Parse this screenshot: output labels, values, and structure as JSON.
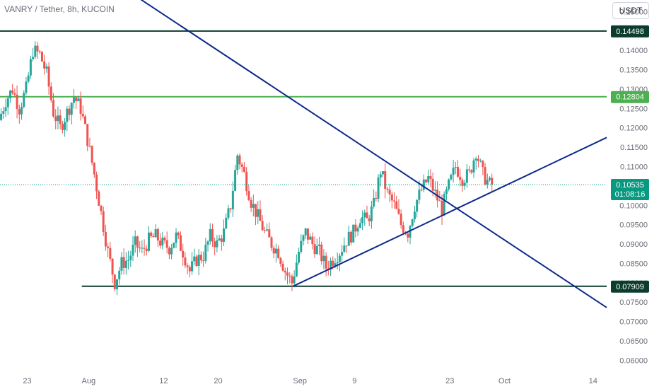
{
  "header": {
    "title": "VANRY / Tether, 8h, KUCOIN",
    "currency": "USDT"
  },
  "colors": {
    "up": "#26a69a",
    "down": "#ef5350",
    "trendline": "#0d2a8c",
    "support": "#0b3d2e",
    "green_level": "#4caf50",
    "current": "#089981"
  },
  "chart_data": {
    "type": "candlestick",
    "title": "VANRY / Tether, 8h, KUCOIN",
    "ylim": [
      0.0575,
      0.153
    ],
    "y_ticks": [
      0.06,
      0.065,
      0.07,
      0.075,
      0.08,
      0.085,
      0.09,
      0.095,
      0.1,
      0.105,
      0.11,
      0.115,
      0.12,
      0.125,
      0.13,
      0.135,
      0.14,
      0.145,
      0.15
    ],
    "y_tick_labels": [
      "0.06000",
      "0.06500",
      "0.07000",
      "0.07500",
      "0.08000",
      "0.08500",
      "0.09000",
      "0.09500",
      "0.10000",
      "0.10500",
      "0.11000",
      "0.11500",
      "0.12000",
      "0.12500",
      "0.13000",
      "0.13500",
      "0.14000",
      "0.14500",
      "0.15000"
    ],
    "x_start": "2024-07-19",
    "x_end": "2024-10-16",
    "x_ticks": [
      {
        "date": "2024-07-23",
        "label": "23"
      },
      {
        "date": "2024-08-01",
        "label": "Aug"
      },
      {
        "date": "2024-08-12",
        "label": "12"
      },
      {
        "date": "2024-08-20",
        "label": "20"
      },
      {
        "date": "2024-09-01",
        "label": "Sep"
      },
      {
        "date": "2024-09-09",
        "label": "9"
      },
      {
        "date": "2024-09-23",
        "label": "23"
      },
      {
        "date": "2024-10-01",
        "label": "Oct"
      },
      {
        "date": "2024-10-14",
        "label": "14"
      }
    ],
    "price_path": [
      [
        "2024-07-19",
        0.122
      ],
      [
        "2024-07-20",
        0.127
      ],
      [
        "2024-07-21",
        0.13
      ],
      [
        "2024-07-22",
        0.125
      ],
      [
        "2024-07-23",
        0.13
      ],
      [
        "2024-07-24",
        0.14
      ],
      [
        "2024-07-25",
        0.139
      ],
      [
        "2024-07-26",
        0.134
      ],
      [
        "2024-07-27",
        0.124
      ],
      [
        "2024-07-28",
        0.12
      ],
      [
        "2024-07-29",
        0.124
      ],
      [
        "2024-07-30",
        0.128
      ],
      [
        "2024-07-31",
        0.125
      ],
      [
        "2024-08-01",
        0.117
      ],
      [
        "2024-08-02",
        0.108
      ],
      [
        "2024-08-03",
        0.098
      ],
      [
        "2024-08-04",
        0.088
      ],
      [
        "2024-08-05",
        0.08
      ],
      [
        "2024-08-06",
        0.085
      ],
      [
        "2024-08-07",
        0.086
      ],
      [
        "2024-08-08",
        0.09
      ],
      [
        "2024-08-09",
        0.088
      ],
      [
        "2024-08-10",
        0.091
      ],
      [
        "2024-08-11",
        0.092
      ],
      [
        "2024-08-12",
        0.09
      ],
      [
        "2024-08-13",
        0.089
      ],
      [
        "2024-08-14",
        0.092
      ],
      [
        "2024-08-15",
        0.088
      ],
      [
        "2024-08-16",
        0.083
      ],
      [
        "2024-08-17",
        0.086
      ],
      [
        "2024-08-18",
        0.087
      ],
      [
        "2024-08-19",
        0.092
      ],
      [
        "2024-08-20",
        0.09
      ],
      [
        "2024-08-21",
        0.093
      ],
      [
        "2024-08-22",
        0.1
      ],
      [
        "2024-08-23",
        0.113
      ],
      [
        "2024-08-24",
        0.108
      ],
      [
        "2024-08-25",
        0.101
      ],
      [
        "2024-08-26",
        0.097
      ],
      [
        "2024-08-27",
        0.093
      ],
      [
        "2024-08-28",
        0.09
      ],
      [
        "2024-08-29",
        0.088
      ],
      [
        "2024-08-30",
        0.083
      ],
      [
        "2024-08-31",
        0.08
      ],
      [
        "2024-09-01",
        0.088
      ],
      [
        "2024-09-02",
        0.093
      ],
      [
        "2024-09-03",
        0.09
      ],
      [
        "2024-09-04",
        0.088
      ],
      [
        "2024-09-05",
        0.084
      ],
      [
        "2024-09-06",
        0.086
      ],
      [
        "2024-09-07",
        0.088
      ],
      [
        "2024-09-08",
        0.091
      ],
      [
        "2024-09-09",
        0.093
      ],
      [
        "2024-09-10",
        0.097
      ],
      [
        "2024-09-11",
        0.096
      ],
      [
        "2024-09-12",
        0.1
      ],
      [
        "2024-09-13",
        0.109
      ],
      [
        "2024-09-14",
        0.103
      ],
      [
        "2024-09-15",
        0.1
      ],
      [
        "2024-09-16",
        0.095
      ],
      [
        "2024-09-17",
        0.093
      ],
      [
        "2024-09-18",
        0.1
      ],
      [
        "2024-09-19",
        0.104
      ],
      [
        "2024-09-20",
        0.107
      ],
      [
        "2024-09-21",
        0.103
      ],
      [
        "2024-09-22",
        0.099
      ],
      [
        "2024-09-23",
        0.105
      ],
      [
        "2024-09-24",
        0.11
      ],
      [
        "2024-09-25",
        0.107
      ],
      [
        "2024-09-26",
        0.108
      ],
      [
        "2024-09-27",
        0.114
      ],
      [
        "2024-09-28",
        0.108
      ],
      [
        "2024-09-29",
        0.1054
      ]
    ],
    "current_price": "0.10535",
    "countdown": "01:08:16",
    "levels": [
      {
        "label": "0.14498",
        "value": 0.14498,
        "kind": "support",
        "start": "2024-07-19"
      },
      {
        "label": "0.12804",
        "value": 0.12804,
        "kind": "green_level",
        "start": "2024-07-19"
      },
      {
        "label": "0.07909",
        "value": 0.07909,
        "kind": "support",
        "start": "2024-07-31"
      }
    ],
    "trendlines": [
      {
        "name": "descending-trendline",
        "from": [
          "2024-07-14",
          0.183
        ],
        "to": [
          "2024-10-16",
          0.0736
        ]
      },
      {
        "name": "ascending-trendline",
        "from": [
          "2024-08-31",
          0.0791
        ],
        "to": [
          "2024-10-16",
          0.1175
        ]
      }
    ]
  }
}
